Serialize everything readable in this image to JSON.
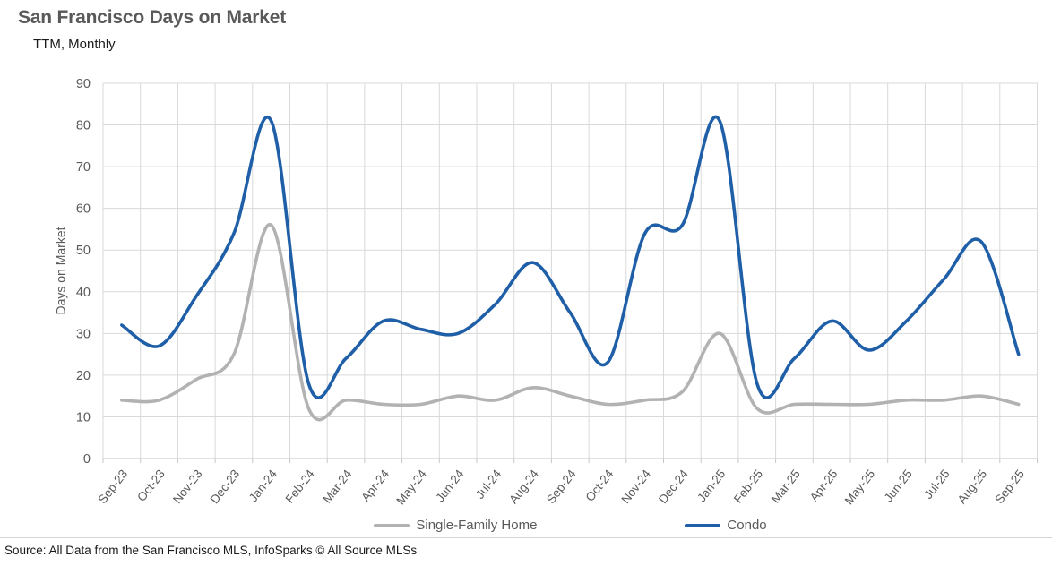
{
  "header": {
    "title": "San Francisco Days on Market",
    "subtitle": "TTM, Monthly"
  },
  "source_note": "Source: All Data from the San Francisco MLS, InfoSparks © All Source MLSs",
  "chart_data": {
    "type": "line",
    "title": "San Francisco Days on Market",
    "subtitle": "TTM, Monthly",
    "xlabel": "",
    "ylabel": "Days on Market",
    "ylim": [
      0,
      90
    ],
    "ytick_interval": 10,
    "grid": true,
    "smooth": true,
    "legend_position": "bottom",
    "categories": [
      "Sep-23",
      "Oct-23",
      "Nov-23",
      "Dec-23",
      "Jan-24",
      "Feb-24",
      "Mar-24",
      "Apr-24",
      "May-24",
      "Jun-24",
      "Jul-24",
      "Aug-24",
      "Sep-24",
      "Oct-24",
      "Nov-24",
      "Dec-24",
      "Jan-25",
      "Feb-25",
      "Mar-25",
      "Apr-25",
      "May-25",
      "Jun-25",
      "Jul-25",
      "Aug-25",
      "Sep-25"
    ],
    "series": [
      {
        "name": "Single-Family Home",
        "color": "#b2b2b2",
        "values": [
          14,
          14,
          19,
          25,
          56,
          12,
          14,
          13,
          13,
          15,
          14,
          17,
          15,
          13,
          14,
          16,
          30,
          12,
          13,
          13,
          13,
          14,
          14,
          15,
          13
        ]
      },
      {
        "name": "Condo",
        "color": "#1f5fa8",
        "values": [
          32,
          27,
          39,
          54,
          81,
          18,
          24,
          33,
          31,
          30,
          37,
          47,
          35,
          23,
          54,
          56,
          81,
          18,
          24,
          33,
          26,
          33,
          43,
          52,
          25
        ]
      }
    ],
    "colors": {
      "gridline": "#d9d9d9",
      "axis_line": "#c6c6c6",
      "axis_text": "#595959",
      "title_text": "#595959"
    }
  }
}
